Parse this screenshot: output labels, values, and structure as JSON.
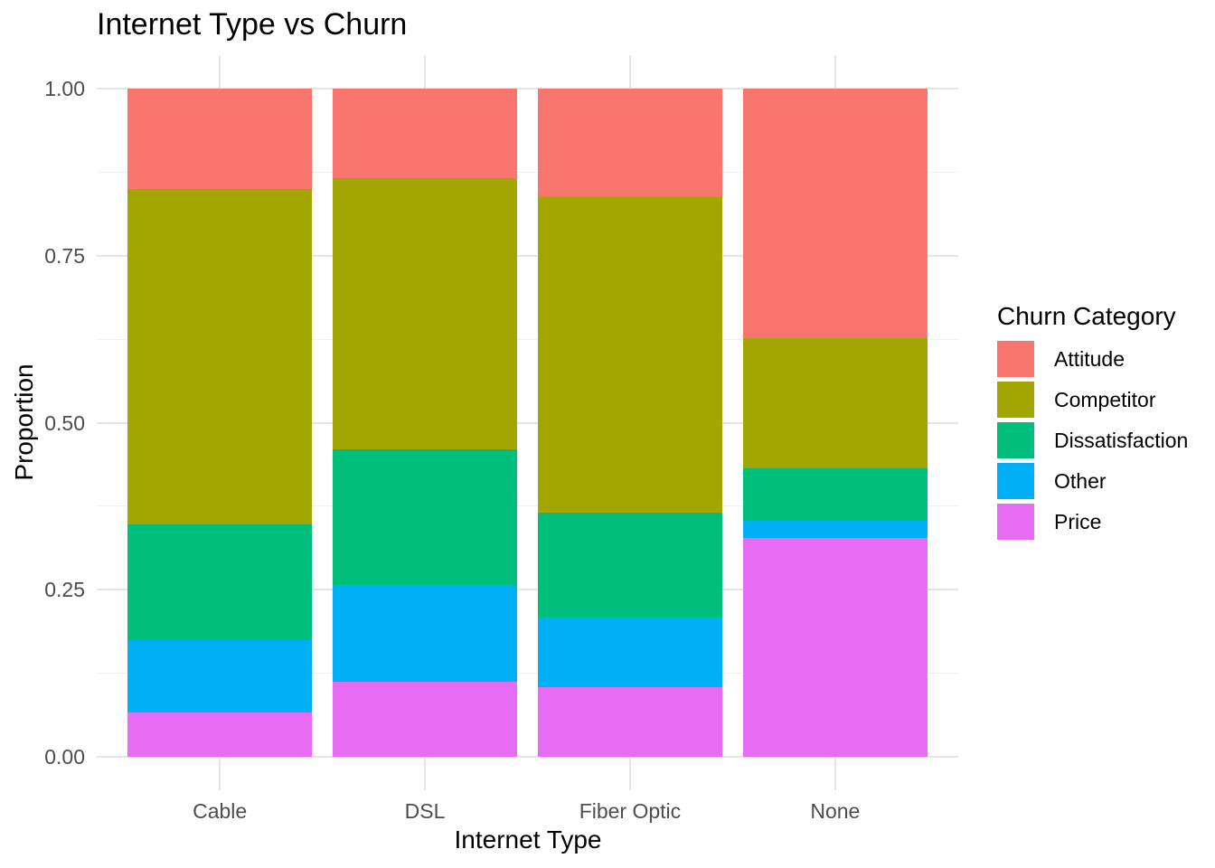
{
  "chart_data": {
    "type": "bar",
    "variant": "stacked-proportional",
    "title": "Internet Type vs Churn",
    "xlabel": "Internet Type",
    "ylabel": "Proportion",
    "legend_title": "Churn Category",
    "legend_position": "right",
    "grid": true,
    "ylim": [
      0,
      1
    ],
    "y_ticks": [
      0.0,
      0.25,
      0.5,
      0.75,
      1.0
    ],
    "y_tick_labels": [
      "0.00",
      "0.25",
      "0.50",
      "0.75",
      "1.00"
    ],
    "categories": [
      "Cable",
      "DSL",
      "Fiber Optic",
      "None"
    ],
    "stack_order_bottom_to_top": [
      "Price",
      "Other",
      "Dissatisfaction",
      "Competitor",
      "Attitude"
    ],
    "series": [
      {
        "name": "Attitude",
        "color": "#F8766D",
        "values": [
          0.15,
          0.134,
          0.163,
          0.373
        ]
      },
      {
        "name": "Competitor",
        "color": "#A3A500",
        "values": [
          0.502,
          0.406,
          0.471,
          0.195
        ]
      },
      {
        "name": "Dissatisfaction",
        "color": "#00BF7D",
        "values": [
          0.174,
          0.203,
          0.158,
          0.079
        ]
      },
      {
        "name": "Other",
        "color": "#00B0F6",
        "values": [
          0.107,
          0.145,
          0.104,
          0.026
        ]
      },
      {
        "name": "Price",
        "color": "#E76BF3",
        "values": [
          0.067,
          0.112,
          0.104,
          0.327
        ]
      }
    ],
    "panel_expansion": {
      "x_discrete": 0.6,
      "y_fraction": 0.05,
      "bar_rel_width": 0.9
    }
  }
}
